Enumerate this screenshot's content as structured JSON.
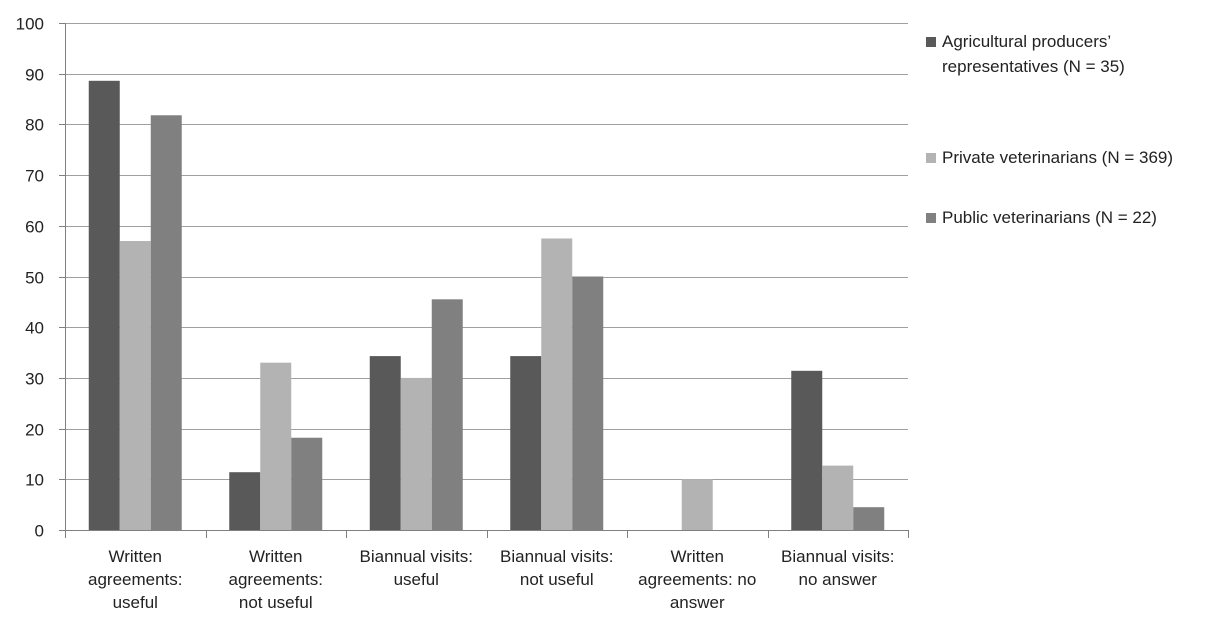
{
  "chart_data": {
    "type": "bar",
    "title": "",
    "xlabel": "",
    "ylabel": "",
    "ylim": [
      0,
      100
    ],
    "yticks": [
      0,
      10,
      20,
      30,
      40,
      50,
      60,
      70,
      80,
      90,
      100
    ],
    "grid": true,
    "legend_position": "right",
    "categories": [
      [
        "Written",
        "agreements:",
        "useful"
      ],
      [
        "Written",
        "agreements:",
        "not useful"
      ],
      [
        "Biannual visits:",
        "useful"
      ],
      [
        "Biannual visits:",
        "not useful"
      ],
      [
        "Written",
        "agreements: no",
        "answer"
      ],
      [
        "Biannual visits:",
        "no answer"
      ]
    ],
    "series": [
      {
        "name": "Agricultural producers’ representatives  (N = 35)",
        "legend_lines": [
          "Agricultural producers’",
          "representatives  (N = 35)"
        ],
        "color": "#595959",
        "values": [
          88.6,
          11.4,
          34.3,
          34.3,
          0,
          31.4
        ]
      },
      {
        "name": "Private veterinarians (N = 369)",
        "legend_lines": [
          "Private veterinarians (N = 369)"
        ],
        "color": "#b3b3b3",
        "values": [
          57.0,
          33.0,
          30.0,
          57.5,
          10.0,
          12.7
        ]
      },
      {
        "name": "Public veterinarians (N = 22)",
        "legend_lines": [
          "Public veterinarians (N = 22)"
        ],
        "color": "#808080",
        "values": [
          81.8,
          18.2,
          45.5,
          50.0,
          0,
          4.5
        ]
      }
    ]
  }
}
